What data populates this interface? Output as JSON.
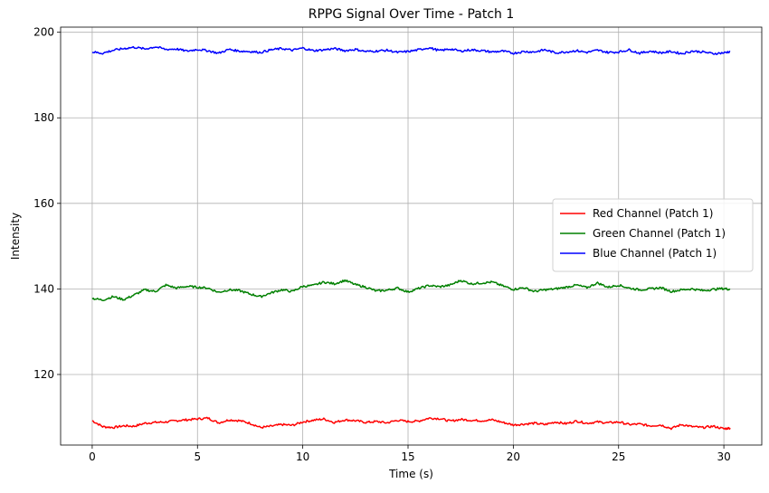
{
  "chart_data": {
    "type": "line",
    "title": "RPPG Signal Over Time - Patch 1",
    "xlabel": "Time (s)",
    "ylabel": "Intensity",
    "xlim": [
      -1.5,
      31.8
    ],
    "ylim": [
      103.5,
      201.2
    ],
    "xticks": [
      0,
      5,
      10,
      15,
      20,
      25,
      30
    ],
    "yticks": [
      120,
      140,
      160,
      180,
      200
    ],
    "grid": true,
    "legend_position": "center-right",
    "series": [
      {
        "name": "Red Channel (Patch 1)",
        "color": "#ff0000",
        "x": [
          0,
          0.5,
          1,
          1.5,
          2,
          2.5,
          3,
          3.5,
          4,
          4.5,
          5,
          5.5,
          6,
          6.5,
          7,
          7.5,
          8,
          8.5,
          9,
          9.5,
          10,
          10.5,
          11,
          11.5,
          12,
          12.5,
          13,
          13.5,
          14,
          14.5,
          15,
          15.5,
          16,
          16.5,
          17,
          17.5,
          18,
          18.5,
          19,
          19.5,
          20,
          20.5,
          21,
          21.5,
          22,
          22.5,
          23,
          23.5,
          24,
          24.5,
          25,
          25.5,
          26,
          26.5,
          27,
          27.5,
          28,
          28.5,
          29,
          29.5,
          30,
          30.3
        ],
        "y": [
          109.2,
          107.8,
          107.6,
          108.0,
          107.9,
          108.6,
          108.8,
          108.9,
          109.2,
          109.4,
          109.6,
          109.8,
          108.7,
          109.4,
          109.2,
          108.6,
          107.6,
          107.9,
          108.3,
          108.1,
          108.9,
          109.3,
          109.6,
          108.8,
          109.4,
          109.2,
          108.8,
          109.0,
          108.7,
          109.3,
          109.0,
          109.1,
          109.8,
          109.7,
          109.1,
          109.5,
          109.3,
          109.2,
          109.4,
          108.8,
          108.2,
          108.4,
          108.6,
          108.3,
          108.9,
          108.5,
          109.1,
          108.6,
          108.9,
          108.7,
          108.9,
          108.3,
          108.4,
          108.0,
          108.2,
          107.4,
          108.3,
          107.8,
          107.6,
          107.9,
          107.3,
          107.5
        ]
      },
      {
        "name": "Green Channel (Patch 1)",
        "color": "#008000",
        "x": [
          0,
          0.5,
          1,
          1.5,
          2,
          2.5,
          3,
          3.5,
          4,
          4.5,
          5,
          5.5,
          6,
          6.5,
          7,
          7.5,
          8,
          8.5,
          9,
          9.5,
          10,
          10.5,
          11,
          11.5,
          12,
          12.5,
          13,
          13.5,
          14,
          14.5,
          15,
          15.5,
          16,
          16.5,
          17,
          17.5,
          18,
          18.5,
          19,
          19.5,
          20,
          20.5,
          21,
          21.5,
          22,
          22.5,
          23,
          23.5,
          24,
          24.5,
          25,
          25.5,
          26,
          26.5,
          27,
          27.5,
          28,
          28.5,
          29,
          29.5,
          30,
          30.3
        ],
        "y": [
          137.8,
          137.4,
          138.2,
          137.5,
          138.6,
          139.8,
          139.4,
          140.9,
          140.2,
          140.6,
          140.4,
          140.2,
          139.2,
          139.8,
          139.6,
          138.8,
          138.2,
          139.1,
          139.8,
          139.4,
          140.6,
          140.8,
          141.6,
          141.2,
          142.0,
          141.0,
          140.4,
          139.5,
          139.7,
          140.2,
          139.3,
          140.1,
          140.8,
          140.5,
          140.9,
          142.0,
          141.2,
          141.4,
          141.6,
          140.7,
          139.9,
          140.3,
          139.4,
          139.8,
          140.0,
          140.4,
          140.9,
          140.3,
          141.4,
          140.4,
          140.9,
          140.2,
          139.8,
          140.0,
          140.3,
          139.4,
          139.8,
          140.0,
          139.6,
          139.9,
          140.1,
          139.9
        ]
      },
      {
        "name": "Blue Channel (Patch 1)",
        "color": "#0000ff",
        "x": [
          0,
          0.5,
          1,
          1.5,
          2,
          2.5,
          3,
          3.5,
          4,
          4.5,
          5,
          5.5,
          6,
          6.5,
          7,
          7.5,
          8,
          8.5,
          9,
          9.5,
          10,
          10.5,
          11,
          11.5,
          12,
          12.5,
          13,
          13.5,
          14,
          14.5,
          15,
          15.5,
          16,
          16.5,
          17,
          17.5,
          18,
          18.5,
          19,
          19.5,
          20,
          20.5,
          21,
          21.5,
          22,
          22.5,
          23,
          23.5,
          24,
          24.5,
          25,
          25.5,
          26,
          26.5,
          27,
          27.5,
          28,
          28.5,
          29,
          29.5,
          30,
          30.3
        ],
        "y": [
          195.4,
          195.1,
          195.8,
          196.2,
          196.5,
          196.1,
          196.6,
          196.0,
          196.1,
          195.6,
          196.0,
          195.7,
          195.1,
          196.0,
          195.6,
          195.5,
          195.3,
          195.9,
          196.2,
          195.8,
          196.3,
          195.7,
          195.9,
          196.2,
          195.7,
          196.0,
          195.5,
          195.6,
          195.8,
          195.3,
          195.5,
          195.9,
          196.4,
          195.7,
          196.1,
          195.6,
          195.9,
          195.7,
          195.4,
          195.6,
          195.1,
          195.5,
          195.4,
          195.9,
          195.2,
          195.4,
          195.7,
          195.3,
          195.8,
          195.3,
          195.4,
          195.9,
          195.1,
          195.6,
          195.2,
          195.5,
          195.0,
          195.6,
          195.4,
          195.0,
          195.2,
          195.5
        ]
      }
    ]
  }
}
